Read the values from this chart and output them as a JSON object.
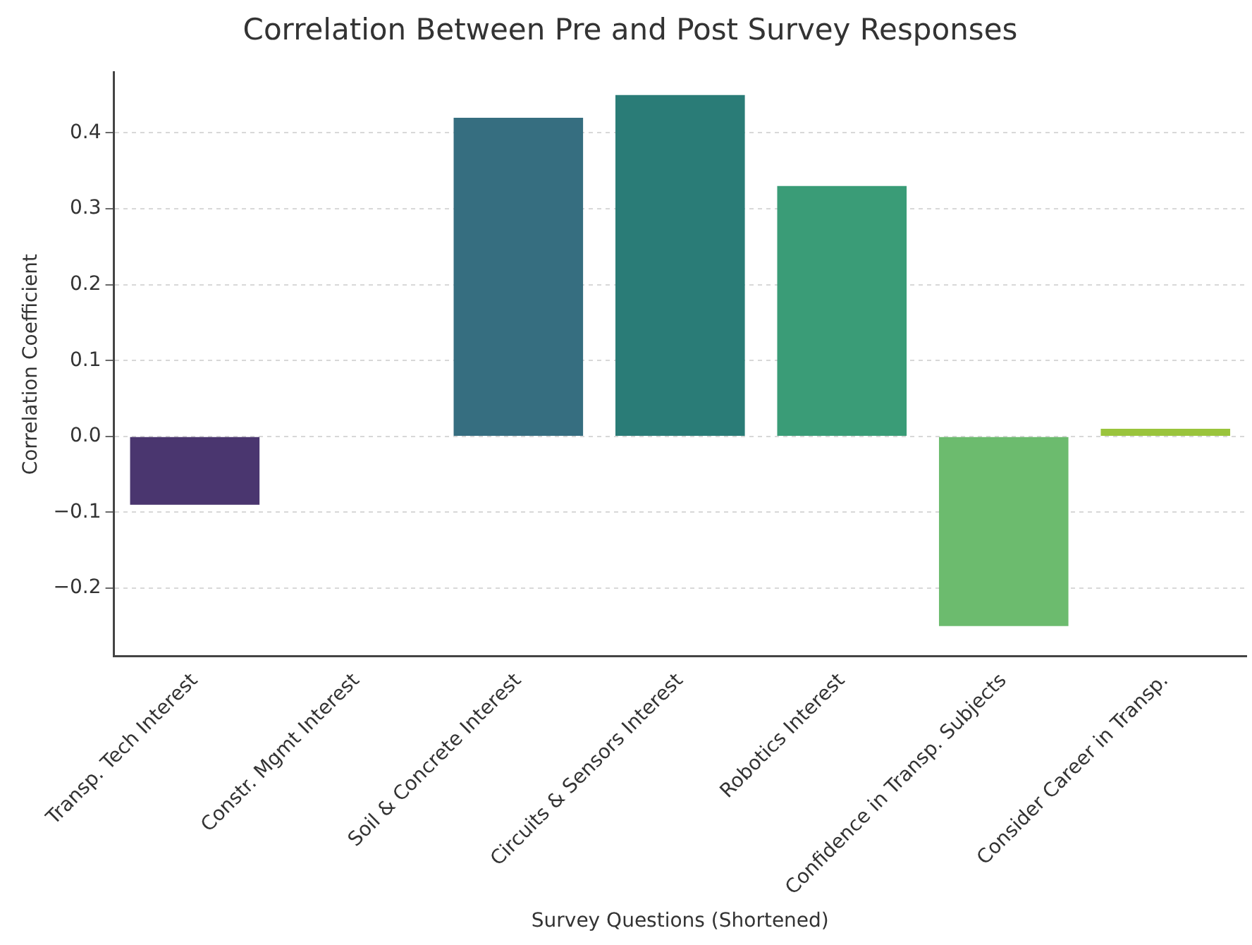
{
  "chart_data": {
    "type": "bar",
    "title": "Correlation Between Pre and Post Survey Responses",
    "xlabel": "Survey Questions (Shortened)",
    "ylabel": "Correlation Coefficient",
    "categories": [
      "Transp. Tech Interest",
      "Constr. Mgmt Interest",
      "Soil & Concrete Interest",
      "Circuits & Sensors Interest",
      "Robotics Interest",
      "Confidence in Transp. Subjects",
      "Consider Career in Transp."
    ],
    "values": [
      -0.09,
      0,
      0.42,
      0.45,
      0.33,
      -0.25,
      0.01
    ],
    "colors": [
      "#4a366f",
      "#3e4a89",
      "#366e80",
      "#2a7c77",
      "#3a9c77",
      "#6cbb6e",
      "#9ac43c"
    ],
    "ylim": [
      -0.29,
      0.48
    ],
    "yticks": [
      {
        "value": -0.2,
        "label": "−0.2"
      },
      {
        "value": -0.1,
        "label": "−0.1"
      },
      {
        "value": 0,
        "label": "0.0"
      },
      {
        "value": 0.1,
        "label": "0.1"
      },
      {
        "value": 0.2,
        "label": "0.2"
      },
      {
        "value": 0.3,
        "label": "0.3"
      },
      {
        "value": 0.4,
        "label": "0.4"
      }
    ],
    "grid": "y"
  }
}
